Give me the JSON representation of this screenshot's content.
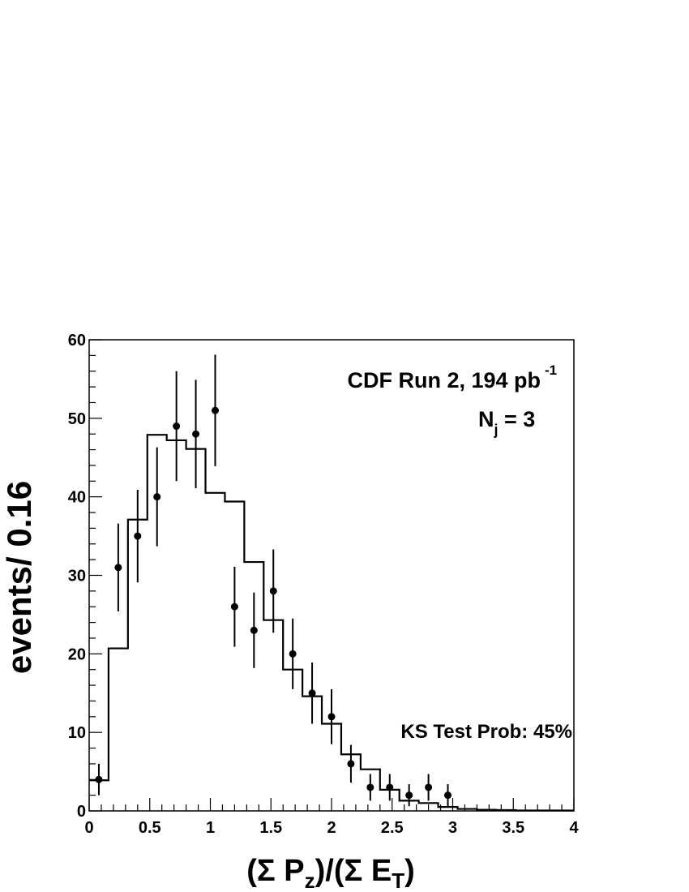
{
  "chart_data": {
    "type": "histogram",
    "xlabel": {
      "pre": "(Σ P",
      "sub1": "z",
      "mid": ")/(Σ E",
      "sub2": "T",
      "post": ")"
    },
    "ylabel": "events/ 0.16",
    "xlim": [
      0,
      4
    ],
    "ylim": [
      0,
      60
    ],
    "x_ticks": [
      "0",
      "0.5",
      "1",
      "1.5",
      "2",
      "2.5",
      "3",
      "3.5",
      "4"
    ],
    "y_ticks": [
      "0",
      "10",
      "20",
      "30",
      "40",
      "50",
      "60"
    ],
    "annotations": {
      "run_text": "CDF Run 2, 194 pb",
      "run_sup": "-1",
      "nj_pre": "N",
      "nj_sub": "j",
      "nj_post": " = 3",
      "ks_text": "KS Test Prob: 45%"
    },
    "series": [
      {
        "kind": "histogram",
        "bin_edges": [
          0,
          0.16,
          0.32,
          0.48,
          0.64,
          0.8,
          0.96,
          1.12,
          1.28,
          1.44,
          1.6,
          1.76,
          1.92,
          2.08,
          2.24,
          2.4,
          2.56,
          2.72,
          2.88,
          3.04,
          3.2,
          3.36,
          3.52,
          3.68,
          3.84,
          4.0
        ],
        "values": [
          3.9,
          20.7,
          37.1,
          47.9,
          47.2,
          46.1,
          40.5,
          39.4,
          31.7,
          24.3,
          18.0,
          14.6,
          11.1,
          7.2,
          5.3,
          2.7,
          1.3,
          1.0,
          0.5,
          0.25,
          0.15,
          0.1,
          0.05,
          0.05,
          0.05
        ]
      },
      {
        "kind": "points_with_errors",
        "x": [
          0.08,
          0.24,
          0.4,
          0.56,
          0.72,
          0.88,
          1.04,
          1.2,
          1.36,
          1.52,
          1.68,
          1.84,
          2.0,
          2.16,
          2.32,
          2.48,
          2.64,
          2.8,
          2.96
        ],
        "y": [
          4,
          31,
          35,
          40,
          49,
          48,
          51,
          26,
          23,
          28,
          20,
          15,
          12,
          6,
          3,
          3,
          2,
          3,
          2
        ],
        "yerr": [
          2.0,
          5.6,
          5.9,
          6.3,
          7.0,
          6.9,
          7.1,
          5.1,
          4.8,
          5.3,
          4.5,
          3.9,
          3.5,
          2.4,
          1.7,
          1.7,
          1.4,
          1.7,
          1.4
        ]
      }
    ]
  }
}
